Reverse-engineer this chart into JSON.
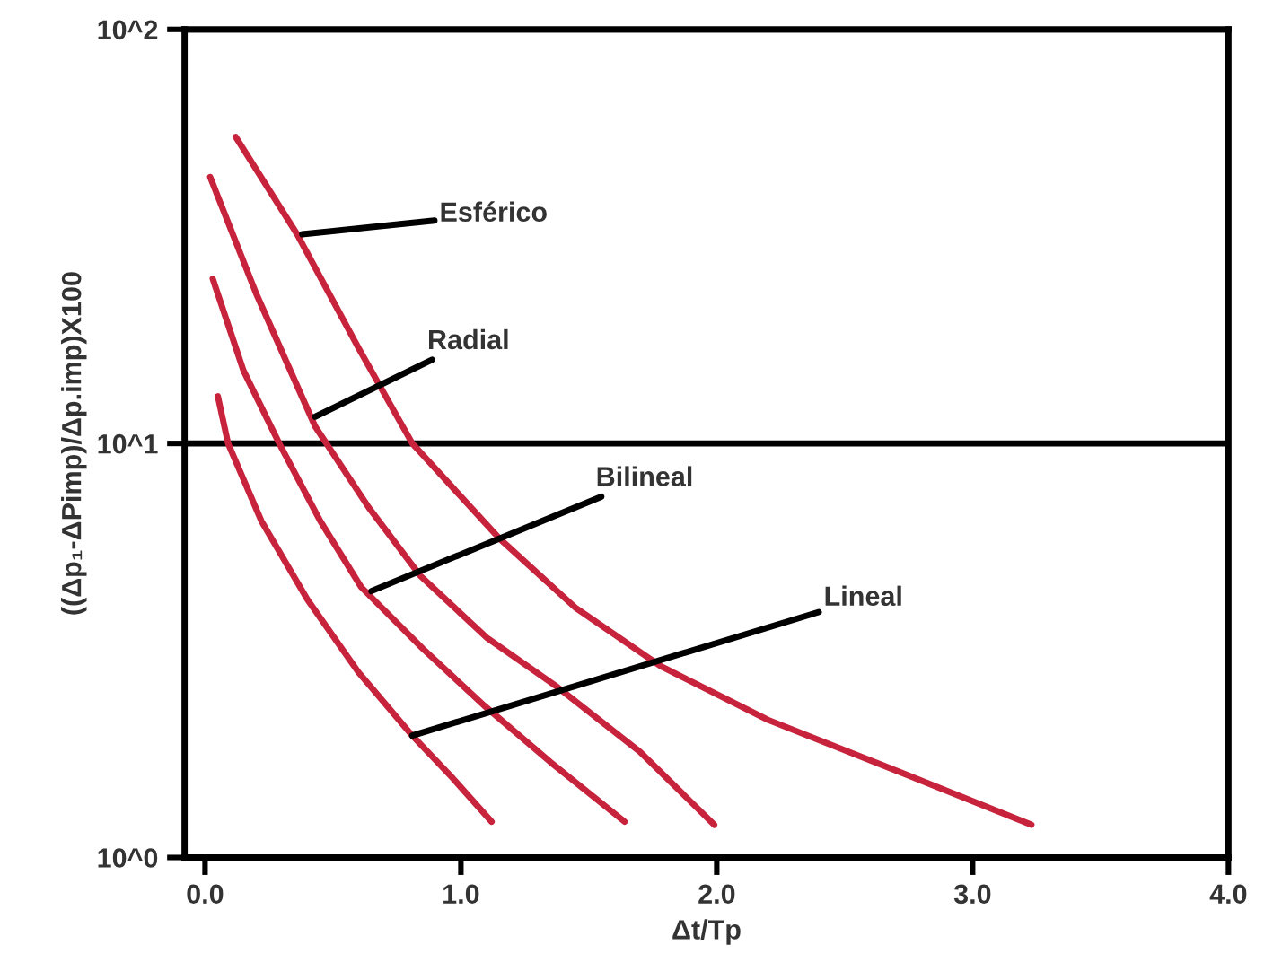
{
  "chart_data": {
    "type": "line",
    "xlabel": "Δt/Tp",
    "ylabel": "((Δp₁-ΔPimp)/Δp.imp)X100",
    "log": "y",
    "xlim": [
      -0.08,
      4.0
    ],
    "ylim": [
      1,
      100
    ],
    "xticks": [
      {
        "value": 0,
        "label": "0.0"
      },
      {
        "value": 1,
        "label": "1.0"
      },
      {
        "value": 2,
        "label": "2.0"
      },
      {
        "value": 3,
        "label": "3.0"
      },
      {
        "value": 4,
        "label": "4.0"
      }
    ],
    "yticks": [
      {
        "value": 1,
        "label": "10^0"
      },
      {
        "value": 10,
        "label": "10^1"
      },
      {
        "value": 100,
        "label": "10^2"
      }
    ],
    "grid": "y",
    "marker": "none",
    "line_style": "solid",
    "series": [
      {
        "color": "#c8233c",
        "x": [
          0.12,
          0.36,
          0.6,
          0.81,
          1.15,
          1.45,
          1.78,
          2.2,
          2.66,
          3.23
        ],
        "values": [
          55,
          32,
          17,
          10,
          5.9,
          4.0,
          2.9,
          2.15,
          1.66,
          1.2
        ]
      },
      {
        "color": "#c8233c",
        "x": [
          0.02,
          0.2,
          0.43,
          0.64,
          0.84,
          1.1,
          1.37,
          1.7,
          1.99
        ],
        "values": [
          44,
          23,
          11,
          7.0,
          4.8,
          3.4,
          2.6,
          1.8,
          1.2
        ]
      },
      {
        "color": "#c8233c",
        "x": [
          0.03,
          0.15,
          0.29,
          0.45,
          0.61,
          0.85,
          1.09,
          1.35,
          1.64
        ],
        "values": [
          25,
          15,
          10,
          6.5,
          4.5,
          3.2,
          2.33,
          1.7,
          1.22
        ]
      },
      {
        "color": "#c8233c",
        "x": [
          0.05,
          0.09,
          0.22,
          0.4,
          0.6,
          0.81,
          0.97,
          1.12
        ],
        "values": [
          13,
          10,
          6.5,
          4.2,
          2.8,
          1.97,
          1.55,
          1.22
        ]
      }
    ],
    "annotations": [
      {
        "text": "Esférico",
        "x": 0.38,
        "y": 32
      },
      {
        "text": "Radial",
        "x": 0.43,
        "y": 11.6
      },
      {
        "text": "Bilineal",
        "x": 0.65,
        "y": 4.4
      },
      {
        "text": "Lineal",
        "x": 0.81,
        "y": 1.97
      }
    ]
  }
}
